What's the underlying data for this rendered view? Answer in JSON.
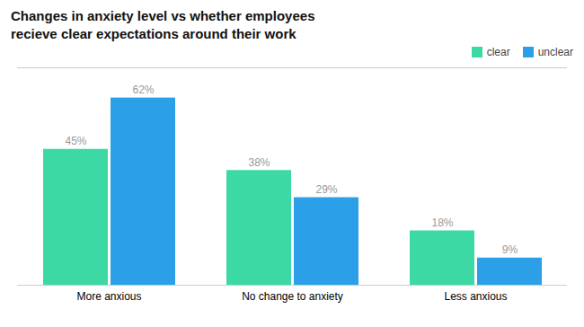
{
  "chart_data": {
    "type": "bar",
    "title": "Changes in anxiety level vs whether employees\nrecieve clear expectations around their work",
    "categories": [
      "More anxious",
      "No change to anxiety",
      "Less anxious"
    ],
    "series": [
      {
        "name": "clear",
        "color": "#3DD9A4",
        "values": [
          45,
          38,
          18
        ],
        "value_labels": [
          "45%",
          "38%",
          "18%"
        ]
      },
      {
        "name": "unclear",
        "color": "#2B9FE8",
        "values": [
          62,
          29,
          9
        ],
        "value_labels": [
          "62%",
          "29%",
          "9%"
        ]
      }
    ],
    "ylim": [
      0,
      72
    ],
    "data_labels": true,
    "tick_labels": "x",
    "legend": "upper right",
    "grid": false
  }
}
